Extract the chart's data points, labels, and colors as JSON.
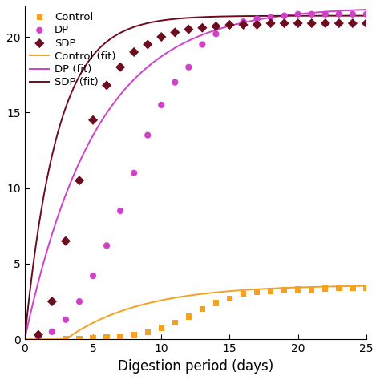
{
  "title": "",
  "xlabel": "Digestion period (days)",
  "ylabel": "",
  "xlim": [
    0,
    25
  ],
  "ylim": [
    0,
    22
  ],
  "yticks": [
    0,
    5,
    10,
    15,
    20
  ],
  "xticks": [
    0,
    5,
    10,
    15,
    20,
    25
  ],
  "background_color": "#ffffff",
  "series": [
    {
      "name": "Control",
      "marker": "s",
      "marker_color": "#f5a020",
      "marker_size": 28,
      "fit_color": "#f5a020",
      "fit_linewidth": 1.4,
      "A": 3.6,
      "k": 0.18,
      "lag": 3.0,
      "data_x": [
        3,
        4,
        5,
        6,
        7,
        8,
        9,
        10,
        11,
        12,
        13,
        14,
        15,
        16,
        17,
        18,
        19,
        20,
        21,
        22,
        23,
        24,
        25
      ],
      "data_y": [
        0.05,
        0.05,
        0.08,
        0.12,
        0.18,
        0.28,
        0.45,
        0.75,
        1.1,
        1.5,
        2.0,
        2.4,
        2.7,
        3.0,
        3.1,
        3.2,
        3.25,
        3.3,
        3.3,
        3.35,
        3.38,
        3.4,
        3.4
      ]
    },
    {
      "name": "DP",
      "marker": "o",
      "marker_color": "#d040c8",
      "marker_size": 35,
      "fit_color": "#d040c8",
      "fit_linewidth": 1.4,
      "A": 22.0,
      "k": 0.19,
      "lag": 0.0,
      "data_x": [
        1,
        2,
        3,
        4,
        5,
        6,
        7,
        8,
        9,
        10,
        11,
        12,
        13,
        14,
        15,
        16,
        17,
        18,
        19,
        20,
        21,
        22,
        23,
        24,
        25
      ],
      "data_y": [
        0.2,
        0.5,
        1.3,
        2.5,
        4.2,
        6.2,
        8.5,
        11.0,
        13.5,
        15.5,
        17.0,
        18.0,
        19.5,
        20.2,
        20.8,
        21.0,
        21.2,
        21.3,
        21.4,
        21.5,
        21.5,
        21.5,
        21.5,
        21.5,
        21.5
      ]
    },
    {
      "name": "SDP",
      "marker": "D",
      "marker_color": "#6b0d1e",
      "marker_size": 38,
      "fit_color": "#6b0d1e",
      "fit_linewidth": 1.4,
      "A": 21.4,
      "k": 0.42,
      "lag": 0.0,
      "data_x": [
        1,
        2,
        3,
        4,
        5,
        6,
        7,
        8,
        9,
        10,
        11,
        12,
        13,
        14,
        15,
        16,
        17,
        18,
        19,
        20,
        21,
        22,
        23,
        24,
        25
      ],
      "data_y": [
        0.3,
        2.5,
        6.5,
        10.5,
        14.5,
        16.8,
        18.0,
        19.0,
        19.5,
        20.0,
        20.3,
        20.5,
        20.6,
        20.7,
        20.8,
        20.8,
        20.8,
        20.9,
        20.9,
        20.9,
        20.9,
        20.9,
        20.9,
        20.9,
        20.9
      ]
    }
  ],
  "legend_labels_marker": [
    "Control",
    "DP",
    "SDP"
  ],
  "legend_labels_fit": [
    "Control (fit)",
    "DP (fit)",
    "SDP (fit)"
  ],
  "legend_fontsize": 9.5,
  "tick_fontsize": 10,
  "xlabel_fontsize": 12
}
